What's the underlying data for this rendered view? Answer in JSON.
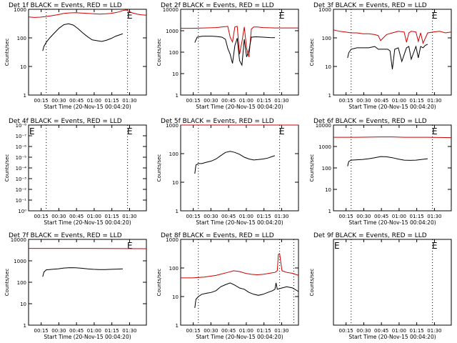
{
  "colors": {
    "events": "#000000",
    "lld": "#cc0000",
    "axis": "#000000"
  },
  "chart_data": [
    {
      "type": "line",
      "title": "Det 1f BLACK = Events, RED = LLD",
      "ylabel": "Counts/sec",
      "xlabel": "Start Time (20-Nov-15 00:04:20)",
      "y_scale": "log",
      "ylim": [
        1,
        1000
      ],
      "yticks": [
        1,
        10,
        100,
        1000
      ],
      "ytick_labels": [
        "1",
        "10",
        "100",
        "1000"
      ],
      "xlim": [
        0,
        100
      ],
      "xticks": [
        10.7,
        25.7,
        40.7,
        55.7,
        70.7,
        85.7
      ],
      "xtick_labels": [
        "00:15",
        "00:30",
        "00:45",
        "01:00",
        "01:15",
        "01:30"
      ],
      "markers": {
        "dotted_x": [
          15,
          84
        ],
        "E_x": [
          83
        ]
      },
      "series": [
        {
          "name": "LLD",
          "x": [
            0,
            5,
            10,
            15,
            20,
            25,
            30,
            35,
            40,
            45,
            50,
            55,
            60,
            65,
            70,
            75,
            80,
            83,
            85,
            88,
            92,
            96,
            100
          ],
          "y": [
            540,
            520,
            530,
            560,
            600,
            650,
            720,
            750,
            760,
            740,
            720,
            700,
            680,
            690,
            720,
            780,
            900,
            950,
            850,
            750,
            680,
            640,
            620
          ]
        },
        {
          "name": "Events",
          "x": [
            12,
            13,
            15,
            18,
            22,
            26,
            30,
            34,
            38,
            42,
            46,
            50,
            54,
            58,
            62,
            66,
            70,
            74,
            78,
            80
          ],
          "y": [
            35,
            50,
            70,
            100,
            150,
            220,
            290,
            310,
            280,
            210,
            150,
            110,
            85,
            80,
            75,
            82,
            95,
            115,
            130,
            140
          ]
        }
      ]
    },
    {
      "type": "line",
      "title": "Det 2f BLACK = Events, RED = LLD",
      "ylabel": "Counts/sec",
      "xlabel": "Start Time (20-Nov-15 00:04:20)",
      "y_scale": "log",
      "ylim": [
        1,
        10000
      ],
      "yticks": [
        1,
        10,
        100,
        1000,
        10000
      ],
      "ytick_labels": [
        "1",
        "10",
        "100",
        "1000",
        "10000"
      ],
      "xlim": [
        0,
        100
      ],
      "xticks": [
        10.7,
        25.7,
        40.7,
        55.7,
        70.7,
        85.7
      ],
      "xtick_labels": [
        "00:15",
        "00:30",
        "00:45",
        "01:00",
        "01:15",
        "01:30"
      ],
      "markers": {
        "dotted_x": [
          15,
          84
        ],
        "E_x": [
          83
        ]
      },
      "series": [
        {
          "name": "LLD",
          "x": [
            0,
            10,
            20,
            30,
            35,
            40,
            42,
            44,
            46,
            48,
            50,
            52,
            54,
            56,
            58,
            60,
            62,
            65,
            70,
            80,
            90,
            100
          ],
          "y": [
            1300,
            1300,
            1350,
            1400,
            1500,
            1600,
            500,
            300,
            1500,
            1600,
            80,
            300,
            1500,
            150,
            60,
            1200,
            1500,
            1500,
            1400,
            1350,
            1350,
            1350
          ]
        },
        {
          "name": "Events",
          "x": [
            12,
            14,
            18,
            22,
            26,
            30,
            35,
            38,
            40,
            42,
            44,
            46,
            48,
            50,
            52,
            54,
            56,
            58,
            60,
            64,
            70,
            76,
            80
          ],
          "y": [
            280,
            500,
            550,
            560,
            560,
            540,
            500,
            400,
            150,
            80,
            30,
            200,
            450,
            40,
            25,
            400,
            60,
            120,
            500,
            520,
            500,
            480,
            470
          ]
        }
      ]
    },
    {
      "type": "line",
      "title": "Det 3f BLACK = Events, RED = LLD",
      "ylabel": "Counts/sec",
      "xlabel": "Start Time (20-Nov-15 00:04:20)",
      "y_scale": "log",
      "ylim": [
        1,
        1000
      ],
      "yticks": [
        1,
        10,
        100,
        1000
      ],
      "ytick_labels": [
        "1",
        "10",
        "100",
        "1000"
      ],
      "xlim": [
        0,
        100
      ],
      "xticks": [
        10.7,
        25.7,
        40.7,
        55.7,
        70.7,
        85.7
      ],
      "xtick_labels": [
        "00:15",
        "00:30",
        "00:45",
        "01:00",
        "01:15",
        "01:30"
      ],
      "markers": {
        "dotted_x": [
          15,
          84
        ],
        "E_x": [
          83
        ]
      },
      "series": [
        {
          "name": "LLD",
          "x": [
            0,
            5,
            10,
            15,
            20,
            25,
            30,
            35,
            38,
            40,
            45,
            50,
            55,
            60,
            62,
            64,
            66,
            70,
            72,
            74,
            76,
            80,
            85,
            90,
            95,
            100
          ],
          "y": [
            190,
            170,
            160,
            150,
            150,
            140,
            140,
            130,
            120,
            80,
            130,
            150,
            170,
            160,
            70,
            150,
            170,
            160,
            75,
            150,
            65,
            150,
            160,
            170,
            150,
            160
          ]
        },
        {
          "name": "Events",
          "x": [
            12,
            13,
            15,
            20,
            25,
            30,
            35,
            38,
            42,
            46,
            48,
            50,
            52,
            55,
            58,
            62,
            64,
            66,
            70,
            72,
            74,
            76,
            78,
            80
          ],
          "y": [
            20,
            30,
            40,
            45,
            45,
            45,
            50,
            40,
            40,
            40,
            35,
            8,
            40,
            45,
            15,
            45,
            50,
            18,
            50,
            20,
            50,
            45,
            55,
            60
          ]
        }
      ]
    },
    {
      "type": "line",
      "title": "Det 4f BLACK = Events, RED = LLD",
      "ylabel": "Counts/sec",
      "xlabel": "Start Time (20-Nov-15 00:04:20)",
      "y_scale": "log",
      "ylim": [
        1,
        1e-08
      ],
      "yticks": [
        1,
        0.1,
        0.01,
        0.001,
        0.0001,
        1e-05,
        1e-06,
        1e-07,
        1e-08
      ],
      "ytick_labels": [
        "10⁰",
        "10⁻¹",
        "10⁻²",
        "10⁻³",
        "10⁻⁴",
        "10⁻⁵",
        "10⁻⁶",
        "10⁻⁷",
        "10⁻⁸"
      ],
      "xlim": [
        0,
        100
      ],
      "xticks": [
        10.7,
        25.7,
        40.7,
        55.7,
        70.7,
        85.7
      ],
      "xtick_labels": [
        "00:15",
        "00:30",
        "00:45",
        "01:00",
        "01:15",
        "01:30"
      ],
      "markers": {
        "dotted_x": [
          15,
          84
        ],
        "E_x": [
          0,
          83
        ]
      },
      "series": []
    },
    {
      "type": "line",
      "title": "Det 5f BLACK = Events, RED = LLD",
      "ylabel": "Counts/sec",
      "xlabel": "Start Time (20-Nov-15 00:04:20)",
      "y_scale": "log",
      "ylim": [
        1,
        1000
      ],
      "yticks": [
        1,
        10,
        100,
        1000
      ],
      "ytick_labels": [
        "1",
        "10",
        "100",
        "1000"
      ],
      "xlim": [
        0,
        100
      ],
      "xticks": [
        10.7,
        25.7,
        40.7,
        55.7,
        70.7,
        85.7
      ],
      "xtick_labels": [
        "00:15",
        "00:30",
        "00:45",
        "01:00",
        "01:15",
        "01:30"
      ],
      "markers": {
        "dotted_x": [
          15,
          84
        ],
        "E_x": [
          83
        ]
      },
      "series": [
        {
          "name": "LLD",
          "x": [
            0,
            100
          ],
          "y": [
            1000,
            1000
          ]
        },
        {
          "name": "Events",
          "x": [
            12,
            13,
            15,
            18,
            22,
            26,
            30,
            34,
            38,
            42,
            46,
            50,
            54,
            58,
            62,
            66,
            70,
            74,
            78,
            80
          ],
          "y": [
            20,
            40,
            45,
            45,
            50,
            55,
            65,
            85,
            110,
            120,
            110,
            95,
            75,
            65,
            60,
            62,
            65,
            70,
            80,
            85
          ]
        }
      ]
    },
    {
      "type": "line",
      "title": "Det 6f BLACK = Events, RED = LLD",
      "ylabel": "Counts/sec",
      "xlabel": "Start Time (20-Nov-15 00:04:20)",
      "y_scale": "log",
      "ylim": [
        1,
        10000
      ],
      "yticks": [
        1,
        10,
        100,
        1000,
        10000
      ],
      "ytick_labels": [
        "1",
        "10",
        "100",
        "1000",
        "10000"
      ],
      "xlim": [
        0,
        100
      ],
      "xticks": [
        10.7,
        25.7,
        40.7,
        55.7,
        70.7,
        85.7
      ],
      "xtick_labels": [
        "00:15",
        "00:30",
        "00:45",
        "01:00",
        "01:15",
        "01:30"
      ],
      "markers": {
        "dotted_x": [
          15,
          84
        ],
        "E_x": [
          83
        ]
      },
      "series": [
        {
          "name": "LLD",
          "x": [
            0,
            20,
            40,
            50,
            60,
            80,
            100
          ],
          "y": [
            2700,
            2700,
            2800,
            2800,
            2700,
            2700,
            2600
          ]
        },
        {
          "name": "Events",
          "x": [
            12,
            13,
            15,
            20,
            25,
            30,
            35,
            40,
            45,
            50,
            55,
            60,
            65,
            70,
            75,
            80
          ],
          "y": [
            120,
            200,
            230,
            240,
            250,
            270,
            300,
            340,
            330,
            300,
            260,
            230,
            225,
            230,
            250,
            270
          ]
        }
      ]
    },
    {
      "type": "line",
      "title": "Det 7f BLACK = Events, RED = LLD",
      "ylabel": "Counts/sec",
      "xlabel": "Start Time (20-Nov-15 00:04:20)",
      "y_scale": "log",
      "ylim": [
        1,
        10000
      ],
      "yticks": [
        1,
        10,
        100,
        1000,
        10000
      ],
      "ytick_labels": [
        "1",
        "10",
        "100",
        "1000",
        "10000"
      ],
      "xlim": [
        0,
        100
      ],
      "xticks": [
        10.7,
        25.7,
        40.7,
        55.7,
        70.7,
        85.7
      ],
      "xtick_labels": [
        "00:15",
        "00:30",
        "00:45",
        "01:00",
        "01:15",
        "01:30"
      ],
      "markers": {
        "dotted_x": [],
        "E_x": [
          83
        ]
      },
      "series": [
        {
          "name": "LLD",
          "x": [
            0,
            50,
            100
          ],
          "y": [
            3800,
            3800,
            3700
          ]
        },
        {
          "name": "Events",
          "x": [
            12,
            13,
            15,
            20,
            25,
            30,
            35,
            40,
            45,
            50,
            55,
            60,
            65,
            70,
            75,
            80
          ],
          "y": [
            180,
            300,
            380,
            400,
            420,
            460,
            480,
            470,
            450,
            420,
            400,
            390,
            390,
            400,
            410,
            420
          ]
        }
      ]
    },
    {
      "type": "line",
      "title": "Det 8f BLACK = Events, RED = LLD",
      "ylabel": "Counts/sec",
      "xlabel": "Start Time (20-Nov-15 00:04:20)",
      "y_scale": "log",
      "ylim": [
        1,
        1000
      ],
      "yticks": [
        1,
        10,
        100,
        1000
      ],
      "ytick_labels": [
        "1",
        "10",
        "100",
        "1000"
      ],
      "xlim": [
        0,
        100
      ],
      "xticks": [
        10.7,
        25.7,
        40.7,
        55.7,
        70.7,
        85.7
      ],
      "xtick_labels": [
        "00:15",
        "00:30",
        "00:45",
        "01:00",
        "01:15",
        "01:30"
      ],
      "markers": {
        "dotted_x": [
          15,
          84,
          96
        ],
        "E_x": []
      },
      "series": [
        {
          "name": "LLD",
          "x": [
            0,
            10,
            20,
            30,
            40,
            45,
            50,
            55,
            60,
            65,
            70,
            75,
            80,
            82,
            83,
            84,
            86,
            88,
            90,
            95,
            100
          ],
          "y": [
            45,
            45,
            48,
            55,
            70,
            80,
            75,
            65,
            60,
            58,
            60,
            65,
            70,
            80,
            300,
            320,
            80,
            75,
            70,
            65,
            55
          ]
        },
        {
          "name": "Events",
          "x": [
            12,
            13,
            15,
            18,
            22,
            26,
            30,
            34,
            38,
            42,
            46,
            50,
            54,
            58,
            62,
            66,
            70,
            74,
            78,
            80,
            81,
            82,
            86,
            90,
            95,
            100
          ],
          "y": [
            4,
            8,
            10,
            12,
            13,
            14,
            16,
            22,
            26,
            30,
            25,
            20,
            18,
            14,
            12,
            11,
            12,
            14,
            16,
            18,
            30,
            18,
            20,
            22,
            20,
            15
          ]
        }
      ]
    },
    {
      "type": "line",
      "title": "Det 9f BLACK = Events, RED = LLD",
      "ylabel": "Counts/sec",
      "xlabel": "Start Time (20-Nov-15 00:04:20)",
      "y_scale": "log",
      "ylim": [
        1,
        10
      ],
      "yticks": [],
      "ytick_labels": [],
      "xlim": [
        0,
        100
      ],
      "xticks": [
        10.7,
        25.7,
        40.7,
        55.7,
        70.7,
        85.7
      ],
      "xtick_labels": [
        "00:15",
        "00:30",
        "00:45",
        "01:00",
        "01:15",
        "01:30"
      ],
      "markers": {
        "dotted_x": [
          15,
          84
        ],
        "E_x": [
          0,
          83
        ]
      },
      "series": []
    }
  ]
}
